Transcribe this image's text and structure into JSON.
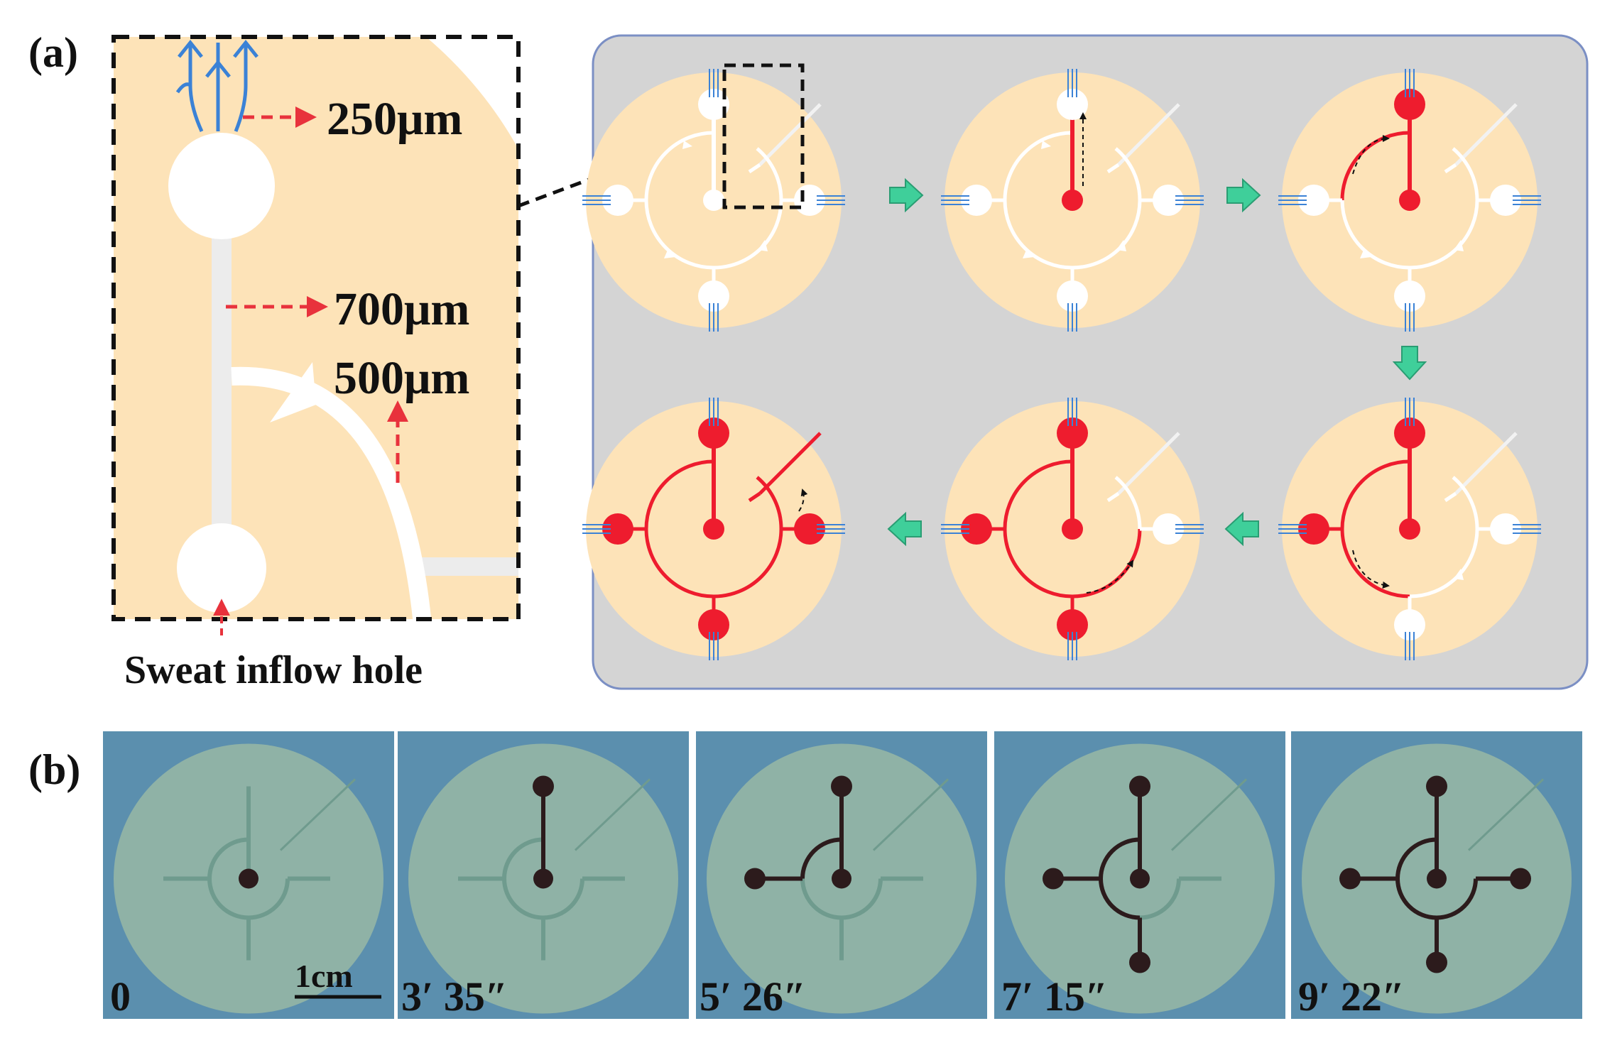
{
  "panel_a": {
    "label": "(a)",
    "dimensions": [
      "250μm",
      "700μm",
      "500μm"
    ],
    "inflow_label": "Sweat inflow hole"
  },
  "panel_b": {
    "label": "(b)",
    "scale_bar": "1cm",
    "timestamps": [
      "0",
      "3′ 35″",
      "5′ 26″",
      "7′ 15″",
      "9′ 22″"
    ]
  },
  "colors": {
    "chip_fill": "#fde3b8",
    "panel_bg": "#d4d4d4",
    "panel_border": "#7b8fc4",
    "filled_channel": "#ee1c2e",
    "inlet_lines": "#3b82d6",
    "dimension_arrow": "#e8323c",
    "step_arrow": "#3fcf9a",
    "photo_bg": "#5b8fae",
    "photo_disc": "#8fb2a6",
    "dye": "#2c1b1c"
  },
  "icons": {
    "step_arrow": "green-step-arrow-icon",
    "flow_arrow": "flow-direction-arrow-icon"
  }
}
